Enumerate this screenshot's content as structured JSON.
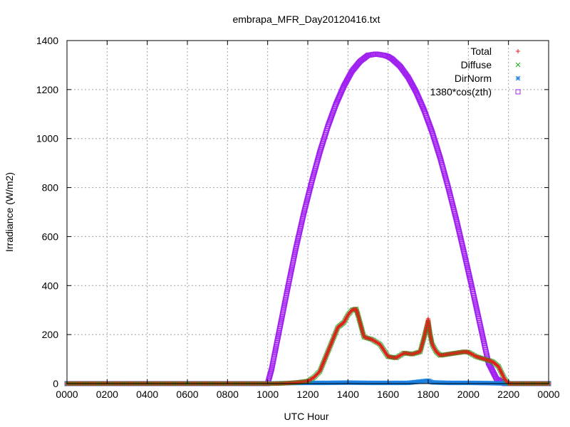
{
  "chart_data": {
    "type": "scatter",
    "title": "embrapa_MFR_Day20120416.txt",
    "xlabel": "UTC Hour",
    "ylabel": "Irradiance (W/m2)",
    "xlim": [
      0,
      24
    ],
    "ylim": [
      0,
      1400
    ],
    "x_ticks": [
      0,
      2,
      4,
      6,
      8,
      10,
      12,
      14,
      16,
      18,
      20,
      22,
      24
    ],
    "x_tick_labels": [
      "0000",
      "0200",
      "0400",
      "0600",
      "0800",
      "1000",
      "1200",
      "1400",
      "1600",
      "1800",
      "2000",
      "2200",
      "0000"
    ],
    "y_ticks": [
      0,
      200,
      400,
      600,
      800,
      1000,
      1200,
      1400
    ],
    "y_tick_labels": [
      "0",
      "200",
      "400",
      "600",
      "800",
      "1000",
      "1200",
      "1400"
    ],
    "grid": true,
    "legend_position": "top-right",
    "series": [
      {
        "name": "Total",
        "marker": "plus",
        "color": "#e0201b",
        "x": [
          0,
          6,
          10.0,
          10.5,
          11.0,
          11.5,
          12.0,
          12.3,
          12.6,
          12.9,
          13.2,
          13.5,
          13.8,
          14.0,
          14.2,
          14.4,
          14.5,
          14.8,
          15.2,
          15.6,
          16.0,
          16.4,
          16.8,
          17.2,
          17.6,
          17.8,
          18.0,
          18.1,
          18.2,
          18.4,
          18.6,
          19.0,
          19.4,
          19.8,
          20.0,
          20.4,
          20.8,
          21.2,
          21.5,
          21.8,
          22.0,
          22.2,
          22.5,
          24
        ],
        "y": [
          0,
          0,
          0,
          0,
          2,
          5,
          10,
          25,
          50,
          110,
          170,
          230,
          250,
          280,
          300,
          305,
          280,
          190,
          180,
          160,
          110,
          105,
          125,
          120,
          130,
          190,
          265,
          200,
          160,
          130,
          115,
          120,
          125,
          130,
          128,
          110,
          100,
          90,
          70,
          20,
          0,
          0,
          0,
          0
        ]
      },
      {
        "name": "Diffuse",
        "marker": "cross",
        "color": "#1aa51a",
        "x": [
          0,
          6,
          10.0,
          10.5,
          11.0,
          11.5,
          12.0,
          12.3,
          12.6,
          12.9,
          13.2,
          13.5,
          13.8,
          14.0,
          14.2,
          14.4,
          14.5,
          14.8,
          15.2,
          15.6,
          16.0,
          16.4,
          16.8,
          17.2,
          17.6,
          17.8,
          18.0,
          18.1,
          18.2,
          18.4,
          18.6,
          19.0,
          19.4,
          19.8,
          20.0,
          20.4,
          20.8,
          21.2,
          21.5,
          21.8,
          22.0,
          22.2,
          22.5,
          24
        ],
        "y": [
          0,
          0,
          0,
          0,
          2,
          5,
          10,
          25,
          50,
          110,
          170,
          230,
          250,
          280,
          300,
          305,
          280,
          190,
          180,
          160,
          110,
          105,
          125,
          120,
          130,
          190,
          250,
          200,
          160,
          130,
          115,
          120,
          125,
          130,
          128,
          110,
          100,
          90,
          70,
          20,
          0,
          0,
          0,
          0
        ]
      },
      {
        "name": "DirNorm",
        "marker": "star",
        "color": "#1a7fe0",
        "x": [
          0,
          6,
          10.0,
          11.0,
          12.0,
          13.0,
          14.0,
          15.0,
          16.0,
          17.0,
          18.0,
          18.2,
          19.0,
          20.0,
          21.0,
          22.0,
          24
        ],
        "y": [
          0,
          0,
          0,
          2,
          3,
          3,
          4,
          3,
          3,
          3,
          12,
          5,
          3,
          3,
          2,
          0,
          0
        ]
      },
      {
        "name": "1380*cos(zth)",
        "marker": "square",
        "color": "#a020f0",
        "x": [
          0,
          4,
          8,
          10.0,
          10.2,
          10.6,
          11.0,
          11.4,
          11.8,
          12.2,
          12.6,
          13.0,
          13.4,
          13.8,
          14.2,
          14.6,
          15.0,
          15.4,
          15.8,
          16.0,
          16.2,
          16.6,
          17.0,
          17.4,
          17.8,
          18.2,
          18.6,
          19.0,
          19.4,
          19.8,
          20.2,
          20.6,
          21.0,
          21.4,
          21.8,
          22.0,
          22.2,
          24
        ],
        "y": [
          0,
          0,
          0,
          0,
          60,
          225,
          390,
          550,
          695,
          825,
          945,
          1050,
          1140,
          1215,
          1275,
          1315,
          1340,
          1345,
          1340,
          1335,
          1325,
          1295,
          1250,
          1190,
          1115,
          1025,
          920,
          800,
          670,
          530,
          385,
          235,
          85,
          20,
          0,
          0,
          0,
          0
        ]
      }
    ]
  }
}
